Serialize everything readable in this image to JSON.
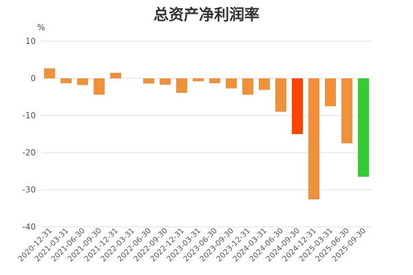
{
  "chart_data": {
    "type": "bar",
    "title": "总资产净利润率",
    "ylabel": "%",
    "xlabel": "",
    "ylim": [
      -40,
      10
    ],
    "yticks": [
      10,
      0,
      -10,
      -20,
      -30,
      -40
    ],
    "grid": true,
    "categories": [
      "2020-12-31",
      "2021-03-31",
      "2021-06-30",
      "2021-09-30",
      "2021-12-31",
      "2022-03-31",
      "2022-06-30",
      "2022-09-30",
      "2022-12-31",
      "2023-03-31",
      "2023-06-30",
      "2023-09-30",
      "2023-12-31",
      "2024-03-31",
      "2024-06-30",
      "2024-09-30",
      "2024-12-31",
      "2025-03-31",
      "2025-06-30",
      "2025-09-30"
    ],
    "values": [
      2.7,
      -1.3,
      -1.8,
      -4.4,
      1.5,
      0,
      -1.4,
      -1.7,
      -3.9,
      -0.8,
      -1.3,
      -2.7,
      -4.4,
      -3.1,
      -9.0,
      -15.0,
      -32.6,
      -7.5,
      -17.5,
      -26.5
    ],
    "colors": [
      "#F0913A",
      "#F0913A",
      "#F0913A",
      "#F0913A",
      "#F0913A",
      "#F0913A",
      "#F0913A",
      "#F0913A",
      "#F0913A",
      "#F0913A",
      "#F0913A",
      "#F0913A",
      "#F0913A",
      "#F0913A",
      "#F0913A",
      "#FF4400",
      "#F0913A",
      "#F0913A",
      "#F0913A",
      "#33CC33"
    ]
  }
}
